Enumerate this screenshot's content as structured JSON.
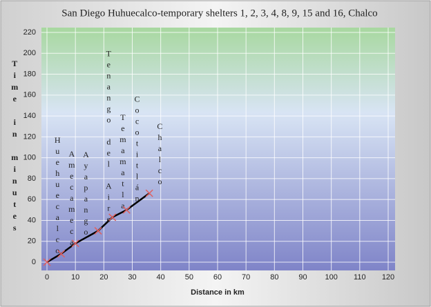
{
  "chart_data": {
    "type": "line",
    "title": "San Diego Huhuecalco-temporary shelters 1, 2, 3, 4, 8, 9, 15 and 16, Chalco",
    "x_label": "Distance in km",
    "y_label": "Time in minutes",
    "x": [
      0,
      5,
      10,
      18,
      23,
      28,
      36
    ],
    "point_labels": [
      "Huehuecalco",
      "Amecameca",
      "Ayapango",
      "Tenango del Aire",
      "Temamatla",
      "Cocotitlán",
      "Chalco"
    ],
    "series": [
      {
        "color": "#000000",
        "marker_color": "#e06060",
        "values": [
          0,
          8,
          18,
          30,
          43,
          50,
          66
        ]
      }
    ],
    "xlim": [
      0,
      120
    ],
    "xticks": [
      0,
      10,
      20,
      30,
      40,
      50,
      60,
      70,
      80,
      90,
      100,
      110,
      120
    ],
    "ylim": [
      0,
      220
    ],
    "yticks": [
      0,
      20,
      40,
      60,
      80,
      100,
      120,
      140,
      160,
      180,
      200,
      220
    ],
    "grid": true
  }
}
